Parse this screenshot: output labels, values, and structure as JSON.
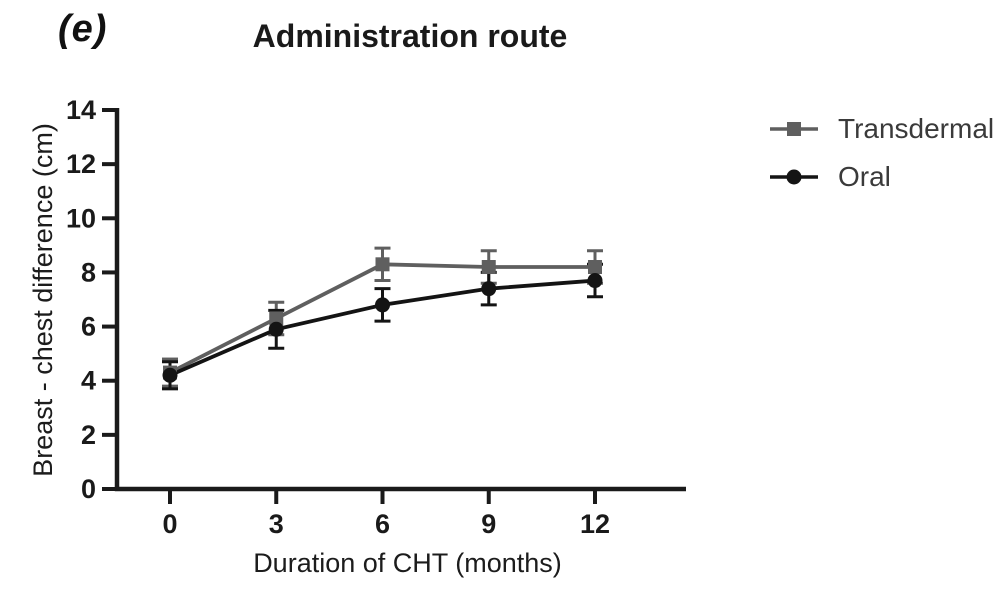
{
  "figure": {
    "panel_label": "(e)"
  },
  "chart_data": {
    "type": "line",
    "title": "Administration route",
    "xlabel": "Duration of CHT (months)",
    "ylabel": "Breast - chest difference (cm)",
    "x": [
      0,
      3,
      6,
      9,
      12
    ],
    "xticks": [
      0,
      3,
      6,
      9,
      12
    ],
    "yticks": [
      0,
      2,
      4,
      6,
      8,
      10,
      12,
      14
    ],
    "xlim": [
      0,
      12
    ],
    "ylim": [
      0,
      14
    ],
    "grid": false,
    "legend_position": "right",
    "error_bars": true,
    "axis_color": "#1a1a1a",
    "series": [
      {
        "name": "Transdermal",
        "marker": "square",
        "color": "#5f5f5f",
        "values": [
          4.3,
          6.3,
          8.3,
          8.2,
          8.2
        ],
        "errors": [
          0.5,
          0.6,
          0.6,
          0.6,
          0.6
        ]
      },
      {
        "name": "Oral",
        "marker": "circle",
        "color": "#141414",
        "values": [
          4.2,
          5.9,
          6.8,
          7.4,
          7.7
        ],
        "errors": [
          0.5,
          0.7,
          0.6,
          0.6,
          0.6
        ]
      }
    ]
  }
}
